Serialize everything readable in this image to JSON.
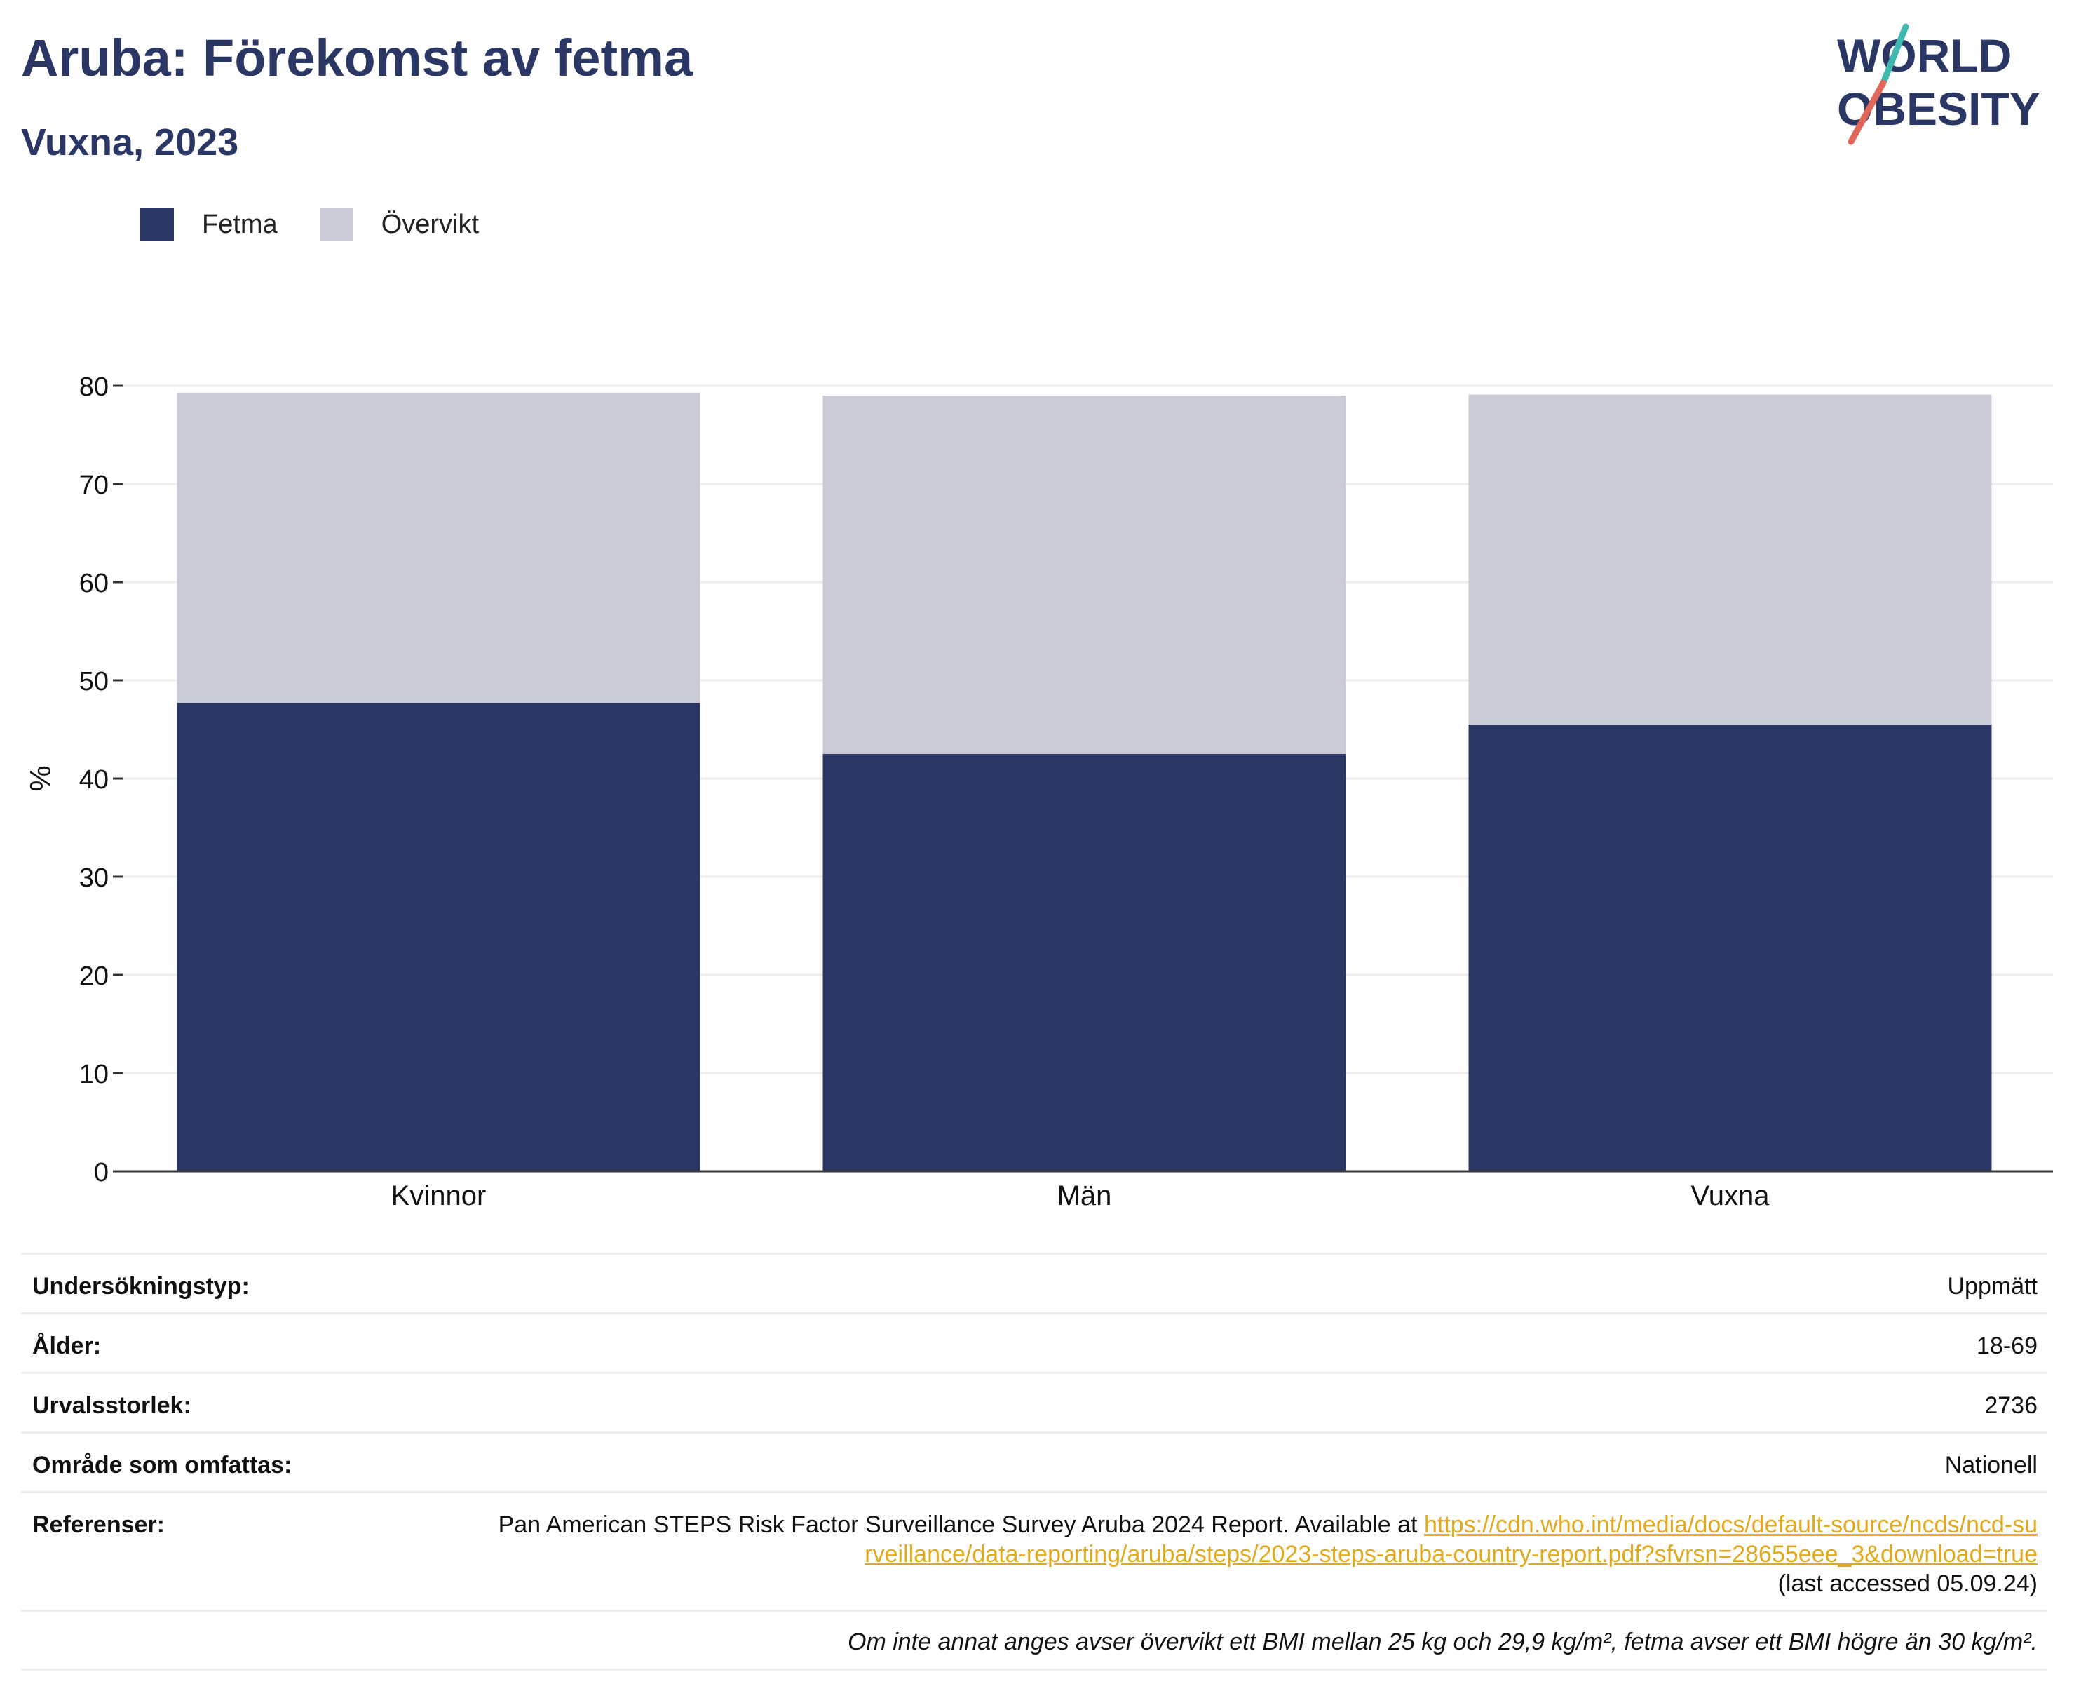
{
  "header": {
    "title": "Aruba: Förekomst av fetma",
    "subtitle": "Vuxna, 2023",
    "logo_line1": "WORLD",
    "logo_line2": "OBESITY"
  },
  "legend": [
    {
      "label": "Fetma",
      "color": "#2a3664"
    },
    {
      "label": "Övervikt",
      "color": "#cacbd7"
    }
  ],
  "chart_data": {
    "type": "bar",
    "stacked": true,
    "categories": [
      "Kvinnor",
      "Män",
      "Vuxna"
    ],
    "series": [
      {
        "name": "Fetma",
        "color": "#2a3664",
        "values": [
          47.7,
          42.5,
          45.5
        ]
      },
      {
        "name": "Övervikt",
        "color": "#cacbd7",
        "values": [
          31.6,
          36.5,
          33.6
        ]
      }
    ],
    "ylabel": "%",
    "ylim": [
      0,
      80
    ],
    "yticks": [
      0,
      10,
      20,
      30,
      40,
      50,
      60,
      70,
      80
    ],
    "grid": true,
    "legend_position": "top-left"
  },
  "info": {
    "survey_type_label": "Undersökningstyp:",
    "survey_type_value": "Uppmätt",
    "age_label": "Ålder:",
    "age_value": "18-69",
    "sample_label": "Urvalsstorlek:",
    "sample_value": "2736",
    "area_label": "Område som omfattas:",
    "area_value": "Nationell",
    "ref_label": "Referenser:",
    "ref_text": "Pan American STEPS Risk Factor Surveillance Survey Aruba 2024 Report. Available at",
    "ref_link": "https://cdn.who.int/media/docs/default-source/ncds/ncd-surveillance/data-reporting/aruba/steps/2023-steps-aruba-country-report.pdf?sfvrsn=28655eee_3&download=true",
    "ref_accessed": "(last accessed 05.09.24)",
    "footnote": "Om inte annat anges avser övervikt ett BMI mellan 25 kg och 29,9 kg/m², fetma avser ett BMI högre än 30 kg/m²."
  }
}
